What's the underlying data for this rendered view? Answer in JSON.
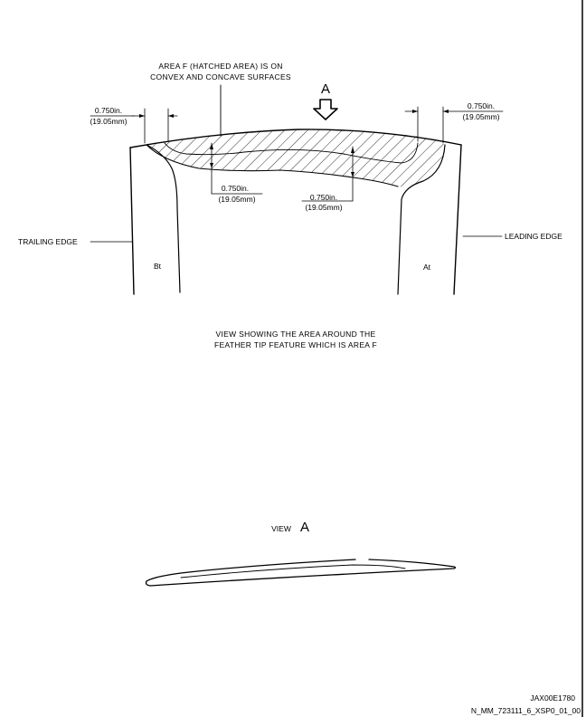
{
  "callout": {
    "line1": "AREA F (HATCHED AREA) IS ON",
    "line2": "CONVEX AND CONCAVE SURFACES"
  },
  "arrow_label": "A",
  "dimensions": {
    "left_top": {
      "inch": "0.750in.",
      "mm": "(19.05mm)"
    },
    "right_top": {
      "inch": "0.750in.",
      "mm": "(19.05mm)"
    },
    "mid_left": {
      "inch": "0.750in.",
      "mm": "(19.05mm)"
    },
    "mid_right": {
      "inch": "0.750in.",
      "mm": "(19.05mm)"
    }
  },
  "edges": {
    "trailing": "TRAILING EDGE",
    "leading": "LEADING EDGE"
  },
  "zones": {
    "left": "Bt",
    "right": "At"
  },
  "caption": {
    "line1": "VIEW SHOWING THE AREA AROUND THE",
    "line2": "FEATHER TIP FEATURE WHICH IS AREA F"
  },
  "view_label": {
    "word": "VIEW",
    "letter": "A"
  },
  "footer": {
    "code1": "JAX00E1780",
    "code2": "N_MM_723111_6_XSP0_01_00"
  }
}
